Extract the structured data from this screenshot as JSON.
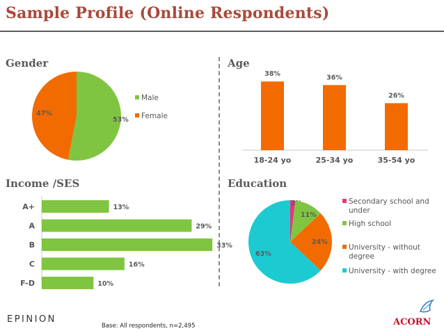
{
  "title": "Sample Profile (Online Respondents)",
  "sections": {
    "gender": "Gender",
    "age": "Age",
    "income": "Income /SES",
    "education": "Education"
  },
  "footer": {
    "epinion": "EPINION",
    "base": "Base: All respondents, n=2,495",
    "acorn": "ACORN"
  },
  "colors": {
    "green": "#80c541",
    "orange": "#f26b00",
    "pink": "#e8347a",
    "cyan": "#1ccad1",
    "title": "#a84a3a"
  },
  "chart_data": [
    {
      "id": "gender",
      "type": "pie",
      "labels": [
        "Male",
        "Female"
      ],
      "values": [
        53,
        47
      ],
      "value_labels": [
        "53%",
        "47%"
      ],
      "colors": [
        "#80c541",
        "#f26b00"
      ],
      "legend": [
        "Male",
        "Female"
      ]
    },
    {
      "id": "age",
      "type": "bar",
      "categories": [
        "18-24 yo",
        "25-34 yo",
        "35-54 yo"
      ],
      "values": [
        38,
        36,
        26
      ],
      "value_labels": [
        "38%",
        "36%",
        "26%"
      ],
      "color": "#f26b00",
      "ylim": [
        0,
        40
      ]
    },
    {
      "id": "income",
      "type": "bar",
      "orientation": "horizontal",
      "categories": [
        "A+",
        "A",
        "B",
        "C",
        "F-D"
      ],
      "values": [
        13,
        29,
        33,
        16,
        10
      ],
      "value_labels": [
        "13%",
        "29%",
        "33%",
        "16%",
        "10%"
      ],
      "color": "#80c541",
      "xlim": [
        0,
        35
      ]
    },
    {
      "id": "education",
      "type": "pie",
      "labels": [
        "Secondary school and under",
        "High school",
        "University - without degree",
        "University - with degree"
      ],
      "legend_lines": [
        [
          "Secondary school and",
          "under"
        ],
        [
          "High school"
        ],
        [
          "University - without",
          "degree"
        ],
        [
          "University - with degree"
        ]
      ],
      "values": [
        2,
        11,
        24,
        63
      ],
      "value_labels": [
        "2%",
        "11%",
        "24%",
        "63%"
      ],
      "colors": [
        "#e8347a",
        "#80c541",
        "#f26b00",
        "#1ccad1"
      ]
    }
  ]
}
